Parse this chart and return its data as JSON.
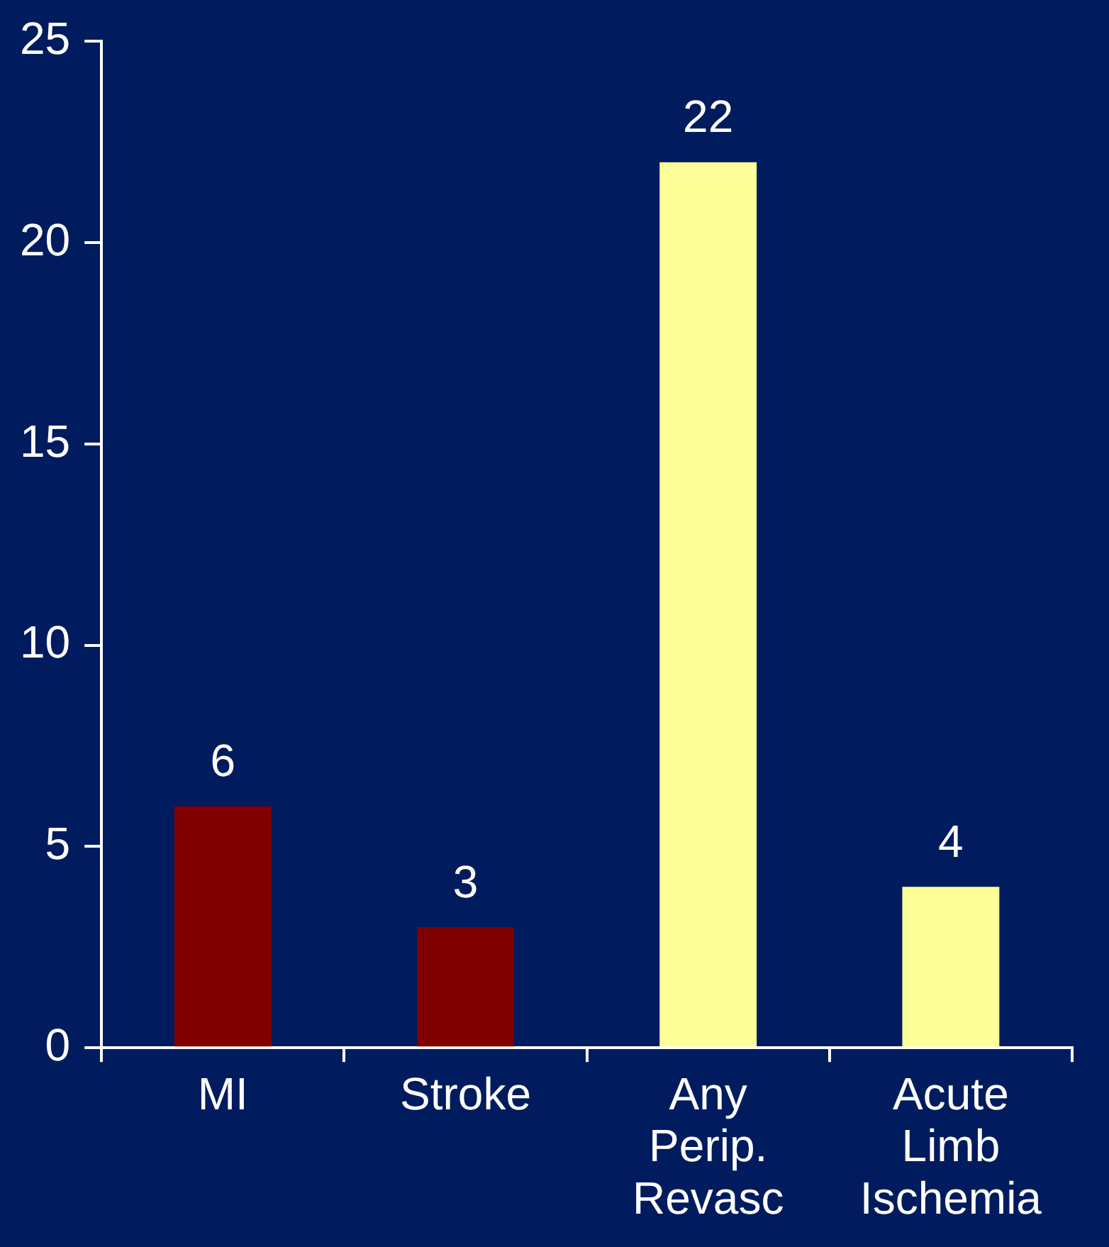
{
  "chart_data": {
    "type": "bar",
    "categories": [
      "MI",
      "Stroke",
      "Any Perip. Revasc",
      "Acute Limb Ischemia"
    ],
    "values": [
      6,
      3,
      22,
      4
    ],
    "colors": [
      "#800000",
      "#800000",
      "#ffff99",
      "#ffff99"
    ],
    "ylim": [
      0,
      25
    ],
    "yticks": [
      0,
      5,
      10,
      15,
      20,
      25
    ],
    "grid": false,
    "legend": false,
    "data_labels": true
  }
}
